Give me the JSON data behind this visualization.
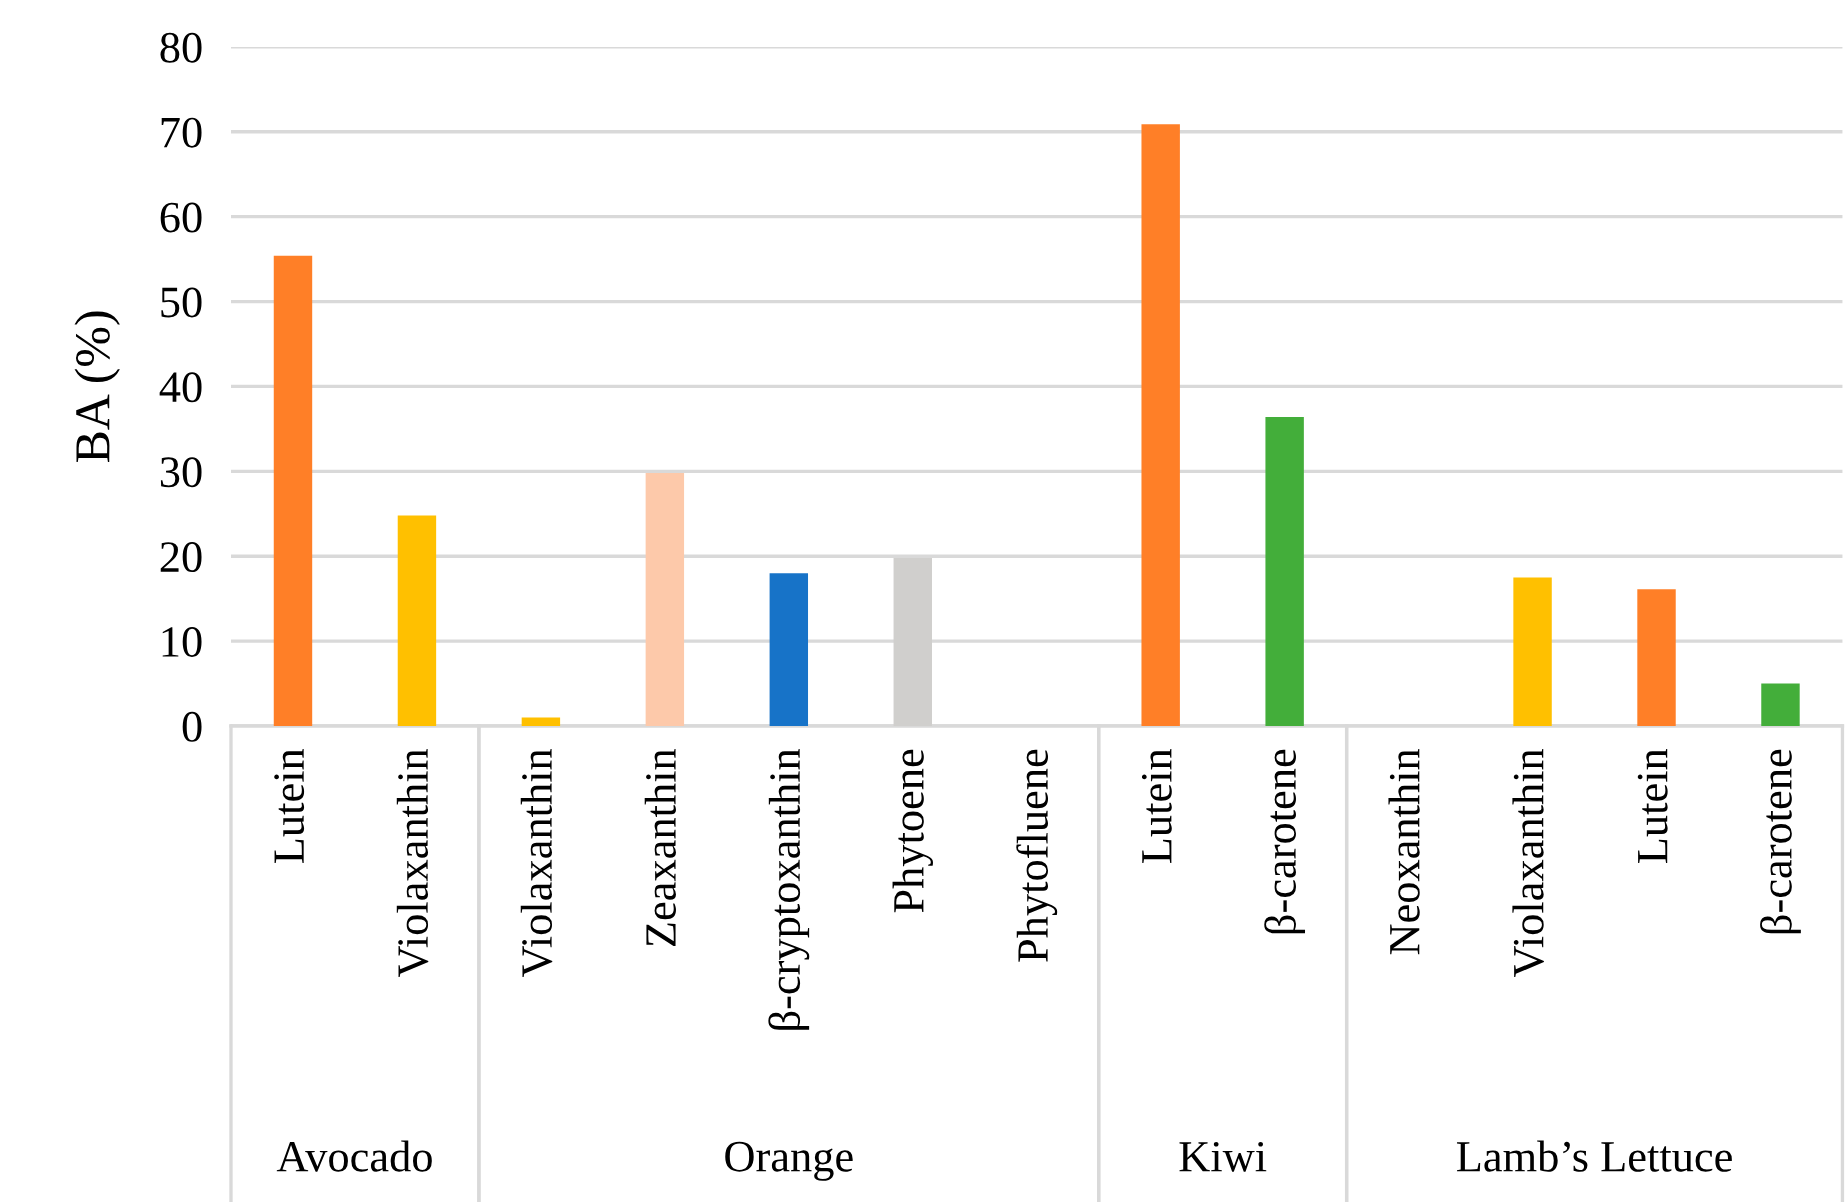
{
  "chart_data": {
    "type": "bar",
    "ylabel": "BA (%)",
    "categories": [
      "Lutein",
      "Violaxanthin",
      "Violaxanthin",
      "Zeaxanthin",
      "β-cryptoxanthin",
      "Phytoene",
      "Phytofluene",
      "Lutein",
      "β-carotene",
      "Neoxanthin",
      "Violaxanthin",
      "Lutein",
      "β-carotene"
    ],
    "series": [
      {
        "values": [
          55.4,
          24.8,
          null,
          null,
          null,
          null,
          null,
          null,
          null,
          null,
          null,
          null,
          null
        ],
        "colors": [
          "#ff7f27",
          "#ffc000",
          null,
          null,
          null,
          null,
          null,
          null,
          null,
          null,
          null,
          null,
          null
        ]
      },
      {
        "values": [
          null,
          null,
          1.0,
          29.8,
          18.0,
          19.8,
          0,
          null,
          null,
          null,
          null,
          null,
          null
        ],
        "colors": [
          null,
          null,
          "#ffc000",
          "#fdc9aa",
          "#1773c8",
          "#d0cfcd",
          "#d0cfcd",
          null,
          null,
          null,
          null,
          null,
          null
        ]
      },
      {
        "values": [
          null,
          null,
          null,
          null,
          null,
          null,
          null,
          70.9,
          36.4,
          null,
          null,
          null,
          null
        ],
        "colors": [
          null,
          null,
          null,
          null,
          null,
          null,
          null,
          "#ff7f27",
          "#43ae3a",
          null,
          null,
          null,
          null
        ]
      },
      {
        "values": [
          null,
          null,
          null,
          null,
          null,
          null,
          null,
          null,
          null,
          0,
          17.5,
          16.1,
          5.0
        ],
        "colors": [
          null,
          null,
          null,
          null,
          null,
          null,
          null,
          null,
          null,
          "#ffc000",
          "#ffc000",
          "#ff7f27",
          "#43ae3a"
        ]
      }
    ],
    "ylim": [
      0,
      80
    ],
    "yticks": [
      0,
      10,
      20,
      30,
      40,
      50,
      60,
      70,
      80
    ],
    "annotations": [
      "Avocado",
      "Orange",
      "Kiwi",
      "Lamb’s Lettuce"
    ],
    "grid": "y",
    "legend": false
  }
}
